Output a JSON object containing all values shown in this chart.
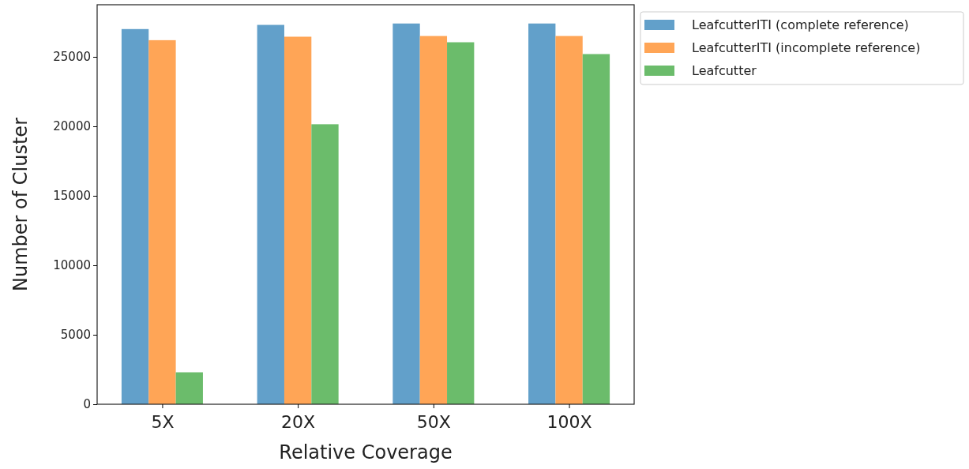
{
  "chart_data": {
    "type": "bar",
    "xlabel": "Relative Coverage",
    "ylabel": "Number of Cluster",
    "categories": [
      "5X",
      "20X",
      "50X",
      "100X"
    ],
    "series": [
      {
        "name": "LeafcutterITI (complete reference)",
        "color": "#62a0ca",
        "values": [
          27000,
          27300,
          27400,
          27400
        ]
      },
      {
        "name": "LeafcutterITI (incomplete reference)",
        "color": "#ffa556",
        "values": [
          26200,
          26450,
          26500,
          26500
        ]
      },
      {
        "name": "Leafcutter",
        "color": "#6bbc6b",
        "values": [
          2300,
          20150,
          26050,
          25200
        ]
      }
    ],
    "ylim": [
      0,
      28750
    ],
    "yticks": [
      0,
      5000,
      10000,
      15000,
      20000,
      25000
    ],
    "grid": false,
    "legend": "right"
  }
}
